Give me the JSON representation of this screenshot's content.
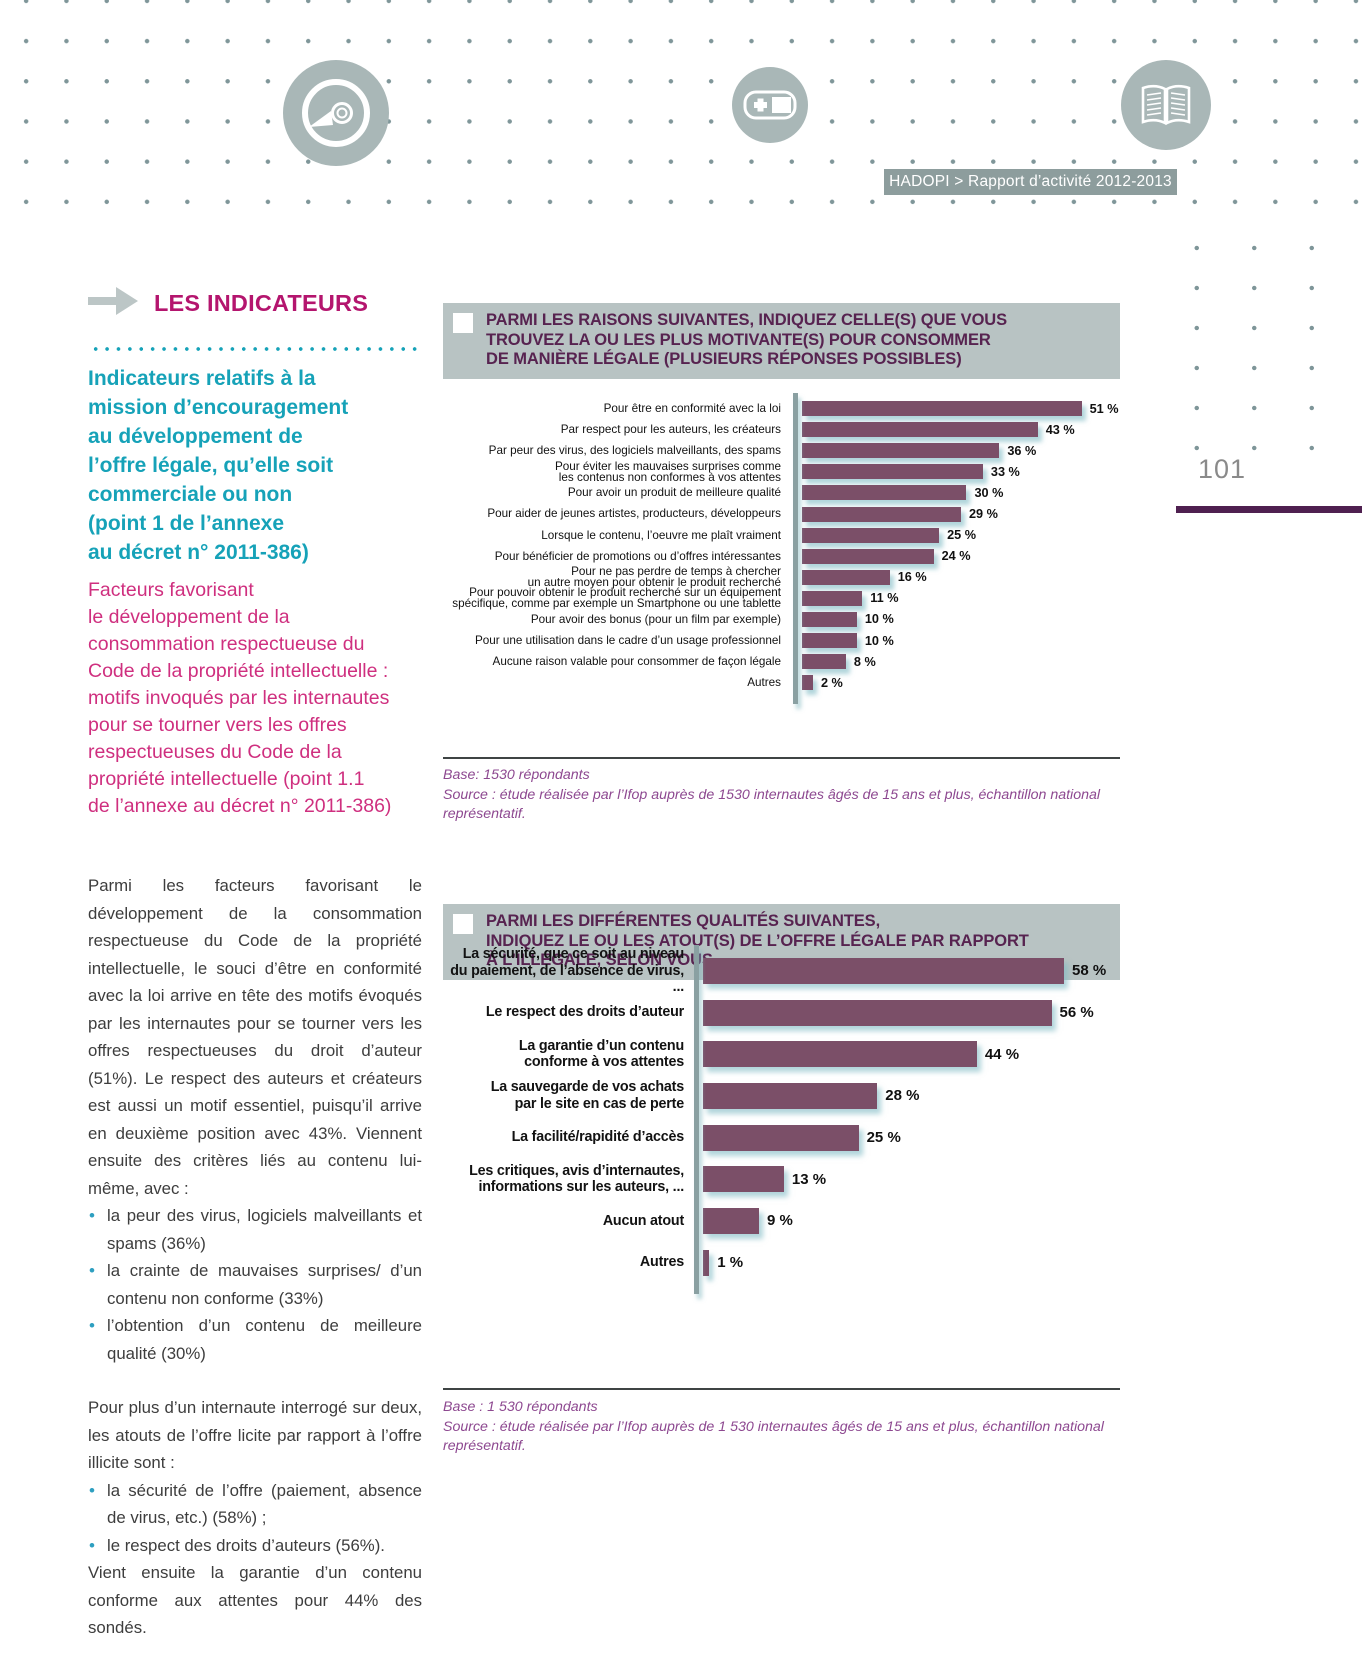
{
  "header": {
    "badge": "HADOPI > Rapport d’activité 2012-2013",
    "icons": [
      "disc-icon",
      "gamepad-icon",
      "open-book-icon"
    ]
  },
  "page": {
    "number": "101"
  },
  "sidebar": {
    "section_title": "LES INDICATEURS",
    "heading_teal": [
      "Indicateurs relatifs à la",
      "mission d’encouragement",
      "au développement de",
      "l’offre légale, qu’elle soit",
      "commerciale ou non",
      "(point 1 de l’annexe",
      "au décret n° 2011-386)"
    ],
    "heading_pink": [
      "Facteurs favorisant",
      "le développement de la",
      "consommation respectueuse du",
      "Code de la propriété intellectuelle :",
      "motifs invoqués par les internautes",
      "pour se tourner vers les offres",
      "respectueuses du Code de la",
      "propriété intellectuelle (point 1.1",
      "de l’annexe au décret n° 2011-386)"
    ],
    "paragraph1": "Parmi les facteurs favorisant le développement de la consommation respectueuse du Code de la propriété intellectuelle, le souci d’être en conformité avec la loi arrive en tête des motifs évoqués par les internautes pour se tourner vers les offres respectueuses du droit d’auteur (51%). Le respect des auteurs et créateurs est aussi un motif essentiel, puisqu’il arrive en deuxième position avec 43%. Viennent ensuite des critères liés au contenu lui-même, avec :",
    "bullets1": [
      "la peur des virus, logiciels malveillants et spams (36%)",
      "la crainte de mauvaises surprises/ d’un contenu non conforme (33%)",
      "l’obtention d’un contenu de meilleure qualité (30%)"
    ],
    "paragraph2": "Pour plus d’un internaute interrogé sur deux, les atouts de l’offre licite par rapport à l’offre illicite sont :",
    "bullets2": [
      "la sécurité de l’offre (paiement, absence de virus, etc.) (58%) ;",
      "le respect des droits d’auteurs (56%)."
    ],
    "paragraph3": "Vient ensuite la garantie d’un contenu conforme aux attentes pour 44% des sondés."
  },
  "chart_data": [
    {
      "type": "bar",
      "orientation": "horizontal",
      "title": "PARMI LES RAISONS SUIVANTES, INDIQUEZ CELLE(S) QUE VOUS TROUVEZ LA OU LES PLUS MOTIVANTE(S) POUR CONSOMMER DE MANIÈRE LÉGALE (PLUSIEURS RÉPONSES POSSIBLES)",
      "title_lines": [
        "PARMI LES RAISONS SUIVANTES, INDIQUEZ CELLE(S) QUE VOUS",
        "TROUVEZ LA OU LES PLUS MOTIVANTE(S) POUR CONSOMMER",
        "DE MANIÈRE LÉGALE (PLUSIEURS RÉPONSES POSSIBLES)"
      ],
      "categories": [
        "Pour être en conformité avec la loi",
        "Par respect pour les auteurs, les créateurs",
        "Par peur des virus, des logiciels malveillants, des spams",
        "Pour éviter les mauvaises surprises comme les contenus non conformes à vos attentes",
        "Pour avoir un produit de meilleure qualité",
        "Pour aider de jeunes artistes, producteurs, développeurs",
        "Lorsque le contenu, l’oeuvre me plaît vraiment",
        "Pour bénéficier de promotions ou d’offres intéressantes",
        "Pour ne pas perdre de temps à chercher un autre moyen pour obtenir le produit recherché",
        "Pour pouvoir obtenir le produit recherché sur un équipement spécifique, comme par exemple un Smartphone ou une tablette",
        "Pour avoir des bonus (pour un film par exemple)",
        "Pour une utilisation dans le cadre d’un usage professionnel",
        "Aucune raison valable pour consommer de façon légale",
        "Autres"
      ],
      "label_lines": [
        [
          "Pour être en conformité avec la loi"
        ],
        [
          "Par respect pour les auteurs, les créateurs"
        ],
        [
          "Par peur des virus, des logiciels malveillants, des spams"
        ],
        [
          "Pour éviter les mauvaises surprises comme",
          "les contenus non conformes à vos attentes"
        ],
        [
          "Pour avoir un produit de meilleure qualité"
        ],
        [
          "Pour aider de jeunes artistes, producteurs, développeurs"
        ],
        [
          "Lorsque le contenu, l’oeuvre me plaît vraiment"
        ],
        [
          "Pour bénéficier de promotions ou d’offres intéressantes"
        ],
        [
          "Pour ne pas perdre de temps à chercher",
          "un autre moyen pour obtenir le produit recherché"
        ],
        [
          "Pour pouvoir obtenir le produit recherché sur un équipement",
          "spécifique, comme par exemple un Smartphone ou une tablette"
        ],
        [
          "Pour avoir des bonus (pour un film par exemple)"
        ],
        [
          "Pour une utilisation dans le cadre d’un usage professionnel"
        ],
        [
          "Aucune raison valable pour consommer de façon légale"
        ],
        [
          "Autres"
        ]
      ],
      "values": [
        51,
        43,
        36,
        33,
        30,
        29,
        25,
        24,
        16,
        11,
        10,
        10,
        8,
        2
      ],
      "unit": "%",
      "xlim": [
        0,
        58
      ],
      "bar_color": "#7b4f68",
      "base": "Base: 1530 répondants",
      "source": "Source : étude réalisée par l’Ifop auprès de 1530 internautes âgés de 15 ans et plus, échantillon national représentatif."
    },
    {
      "type": "bar",
      "orientation": "horizontal",
      "title": "PARMI LES DIFFÉRENTES QUALITÉS SUIVANTES, INDIQUEZ LE OU LES ATOUT(S) DE L’OFFRE LÉGALE PAR RAPPORT À L’ILLÉGALE, SELON VOUS",
      "title_lines": [
        "PARMI LES DIFFÉRENTES QUALITÉS SUIVANTES,",
        "INDIQUEZ LE OU LES ATOUT(S) DE L’OFFRE LÉGALE PAR RAPPORT",
        "À L’ILLÉGALE, SELON VOUS"
      ],
      "categories": [
        "La sécurité, que ce soit au niveau du paiement, de l’absence de virus, ...",
        "Le respect des droits d’auteur",
        "La garantie d’un contenu conforme à vos attentes",
        "La sauvegarde de vos achats par le site en cas de perte",
        "La facilité/rapidité d’accès",
        "Les critiques, avis d’internautes, informations sur les auteurs, ...",
        "Aucun atout",
        "Autres"
      ],
      "label_lines": [
        [
          "La sécurité, que ce soit au niveau",
          "du paiement, de l’absence de virus, ..."
        ],
        [
          "Le respect des droits d’auteur"
        ],
        [
          "La garantie d’un contenu",
          "conforme à vos attentes"
        ],
        [
          "La sauvegarde de vos achats",
          "par le site en cas de perte"
        ],
        [
          "La facilité/rapidité d’accès"
        ],
        [
          "Les critiques, avis d’internautes,",
          "informations sur les auteurs, ..."
        ],
        [
          "Aucun atout"
        ],
        [
          "Autres"
        ]
      ],
      "values": [
        58,
        56,
        44,
        28,
        25,
        13,
        9,
        1
      ],
      "unit": "%",
      "xlim": [
        0,
        67
      ],
      "bar_color": "#7b4f68",
      "base": "Base : 1 530 répondants",
      "source": "Source : étude réalisée par l’Ifop auprès de 1 530 internautes âgés de 15 ans et plus, échantillon national représentatif."
    }
  ],
  "colors": {
    "accent_magenta": "#b4156e",
    "accent_teal": "#16a2b8",
    "accent_pink": "#cf2f7f",
    "bar_purple": "#7b4f68",
    "title_purple": "#572350",
    "header_box_gray": "#b8c3c3",
    "badge_gray": "#8d9d9d",
    "rule_purple": "#4f2050",
    "note_purple": "#8d4890"
  }
}
